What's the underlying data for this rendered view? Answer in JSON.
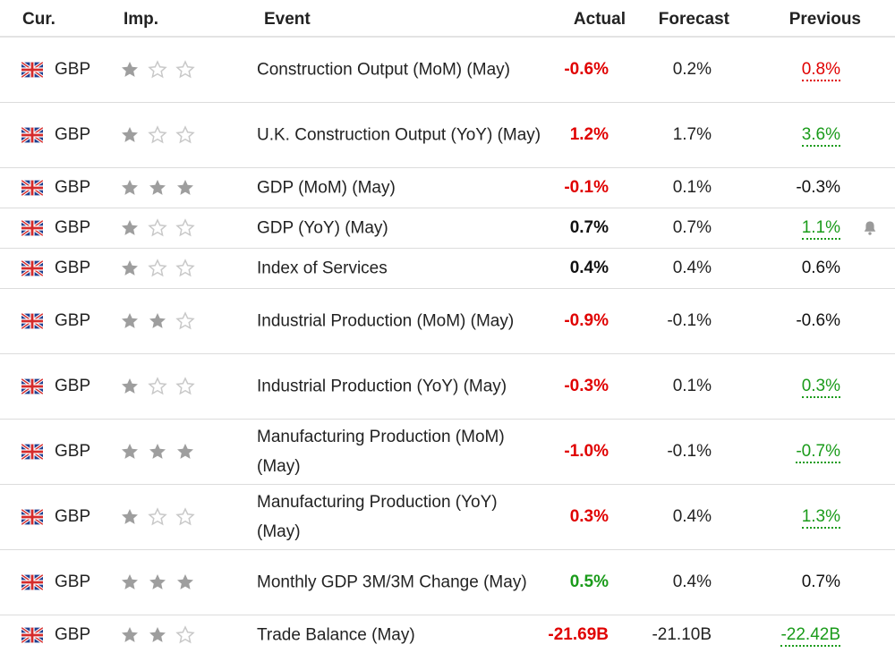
{
  "header": {
    "cur": "Cur.",
    "imp": "Imp.",
    "event": "Event",
    "actual": "Actual",
    "forecast": "Forecast",
    "previous": "Previous"
  },
  "colors": {
    "red": "#e00000",
    "green": "#1a9b1a",
    "black": "#111111",
    "star_filled": "#9e9e9e",
    "star_empty": "#c8c8c8"
  },
  "rows": [
    {
      "currency": "GBP",
      "importance": 1,
      "event": "Construction Output (MoM) (May)",
      "actual": "-0.6%",
      "actual_color": "red",
      "forecast": "0.2%",
      "previous": "0.8%",
      "previous_color": "red",
      "previous_underlined": true,
      "tall": true,
      "bell": false
    },
    {
      "currency": "GBP",
      "importance": 1,
      "event": "U.K. Construction Output (YoY) (May)",
      "actual": "1.2%",
      "actual_color": "red",
      "forecast": "1.7%",
      "previous": "3.6%",
      "previous_color": "green",
      "previous_underlined": true,
      "tall": true,
      "bell": false
    },
    {
      "currency": "GBP",
      "importance": 3,
      "event": "GDP (MoM) (May)",
      "actual": "-0.1%",
      "actual_color": "red",
      "forecast": "0.1%",
      "previous": "-0.3%",
      "previous_color": "black",
      "previous_underlined": false,
      "tall": false,
      "bell": false
    },
    {
      "currency": "GBP",
      "importance": 1,
      "event": "GDP (YoY) (May)",
      "actual": "0.7%",
      "actual_color": "black",
      "forecast": "0.7%",
      "previous": "1.1%",
      "previous_color": "green",
      "previous_underlined": true,
      "tall": false,
      "bell": true
    },
    {
      "currency": "GBP",
      "importance": 1,
      "event": "Index of Services",
      "actual": "0.4%",
      "actual_color": "black",
      "forecast": "0.4%",
      "previous": "0.6%",
      "previous_color": "black",
      "previous_underlined": false,
      "tall": false,
      "bell": false
    },
    {
      "currency": "GBP",
      "importance": 2,
      "event": "Industrial Production (MoM) (May)",
      "actual": "-0.9%",
      "actual_color": "red",
      "forecast": "-0.1%",
      "previous": "-0.6%",
      "previous_color": "black",
      "previous_underlined": false,
      "tall": true,
      "bell": false
    },
    {
      "currency": "GBP",
      "importance": 1,
      "event": "Industrial Production (YoY) (May)",
      "actual": "-0.3%",
      "actual_color": "red",
      "forecast": "0.1%",
      "previous": "0.3%",
      "previous_color": "green",
      "previous_underlined": true,
      "tall": true,
      "bell": false
    },
    {
      "currency": "GBP",
      "importance": 3,
      "event": "Manufacturing Production (MoM) (May)",
      "actual": "-1.0%",
      "actual_color": "red",
      "forecast": "-0.1%",
      "previous": "-0.7%",
      "previous_color": "green",
      "previous_underlined": true,
      "tall": true,
      "bell": false
    },
    {
      "currency": "GBP",
      "importance": 1,
      "event": "Manufacturing Production (YoY) (May)",
      "actual": "0.3%",
      "actual_color": "red",
      "forecast": "0.4%",
      "previous": "1.3%",
      "previous_color": "green",
      "previous_underlined": true,
      "tall": true,
      "bell": false
    },
    {
      "currency": "GBP",
      "importance": 3,
      "event": "Monthly GDP 3M/3M Change (May)",
      "actual": "0.5%",
      "actual_color": "green",
      "forecast": "0.4%",
      "previous": "0.7%",
      "previous_color": "black",
      "previous_underlined": false,
      "tall": true,
      "bell": false
    },
    {
      "currency": "GBP",
      "importance": 2,
      "event": "Trade Balance (May)",
      "actual": "-21.69B",
      "actual_color": "red",
      "forecast": "-21.10B",
      "previous": "-22.42B",
      "previous_color": "green",
      "previous_underlined": true,
      "tall": false,
      "bell": false
    }
  ]
}
